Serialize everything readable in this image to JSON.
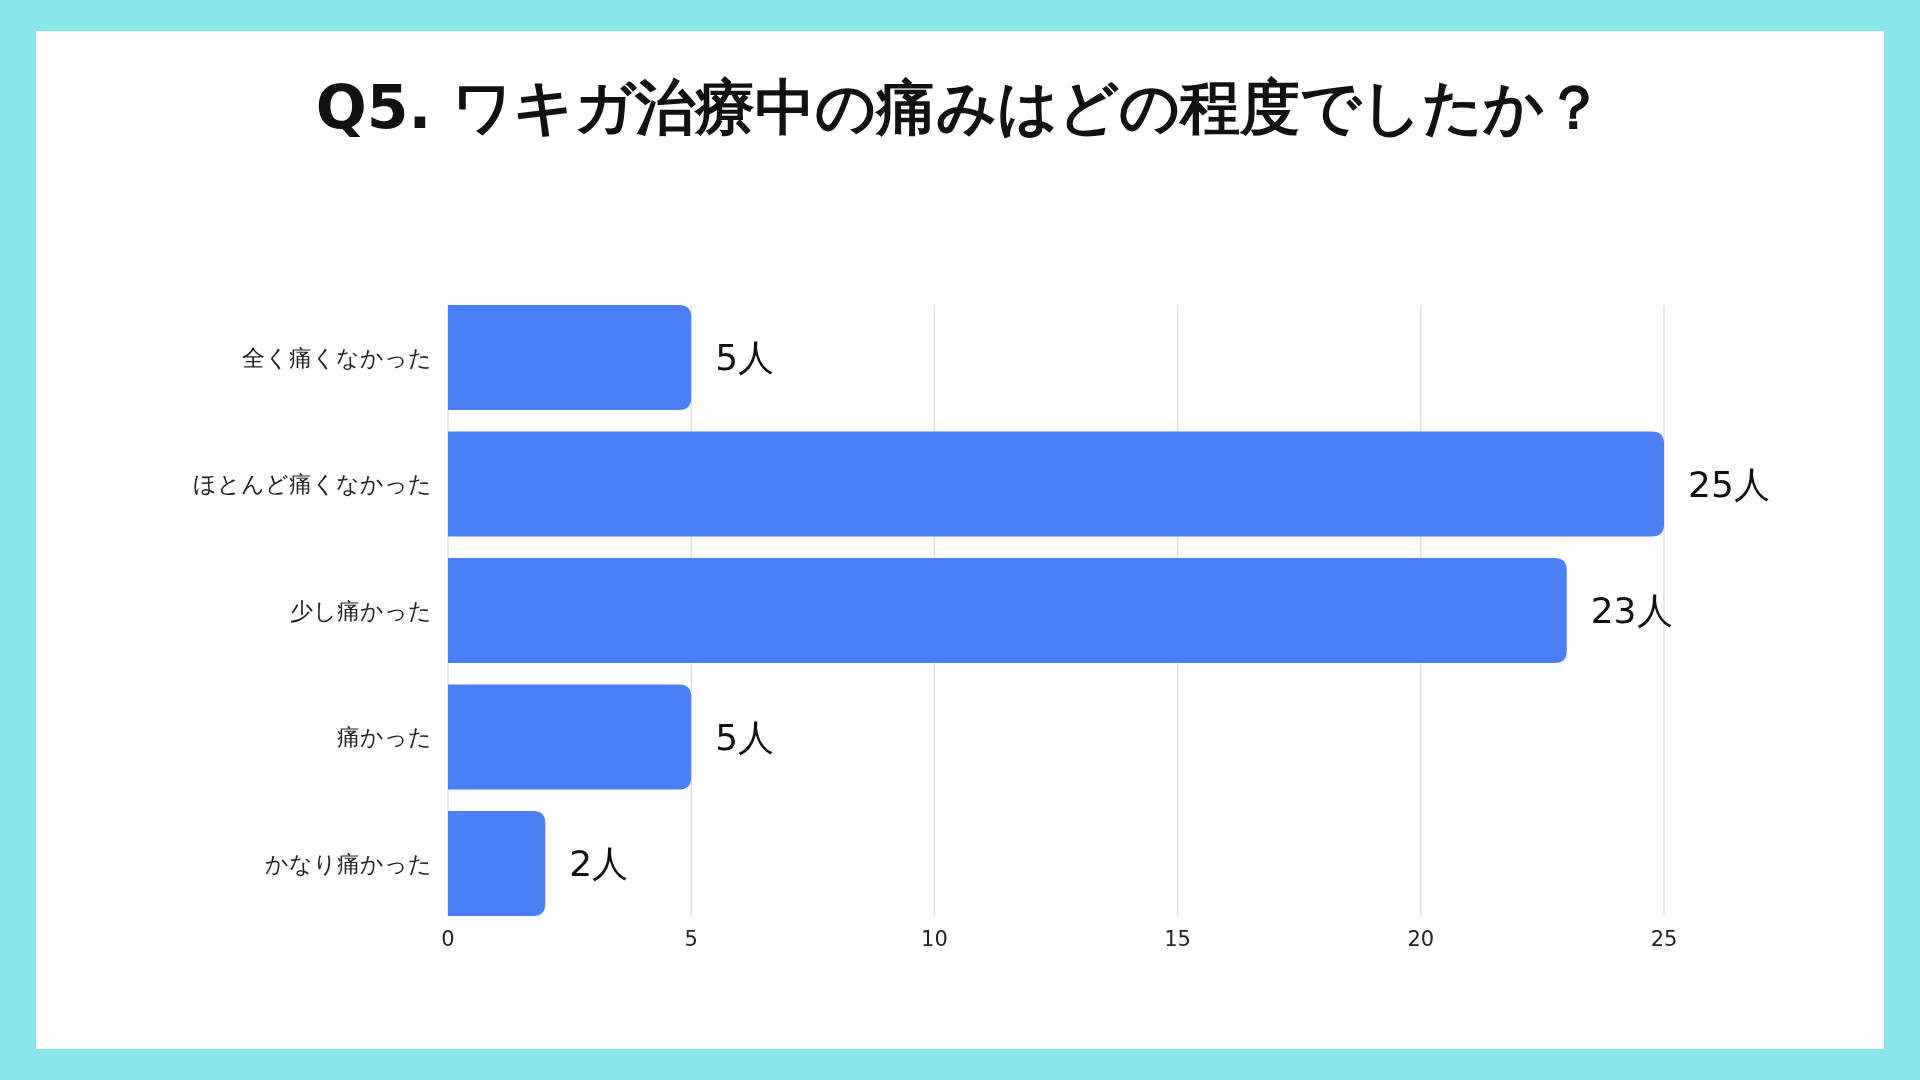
{
  "chart_data": {
    "type": "bar",
    "orientation": "horizontal",
    "title": "Q5. ワキガ治療中の痛みはどの程度でしたか？",
    "categories": [
      "全く痛くなかった",
      "ほとんど痛くなかった",
      "少し痛かった",
      "痛かった",
      "かなり痛かった"
    ],
    "values": [
      5,
      25,
      23,
      5,
      2
    ],
    "value_labels": [
      "5人",
      "25人",
      "23人",
      "5人",
      "2人"
    ],
    "color": "#4a7ff5",
    "xlim": [
      0,
      25
    ],
    "xticks": [
      0,
      5,
      10,
      15,
      20,
      25
    ],
    "grid": "x"
  }
}
